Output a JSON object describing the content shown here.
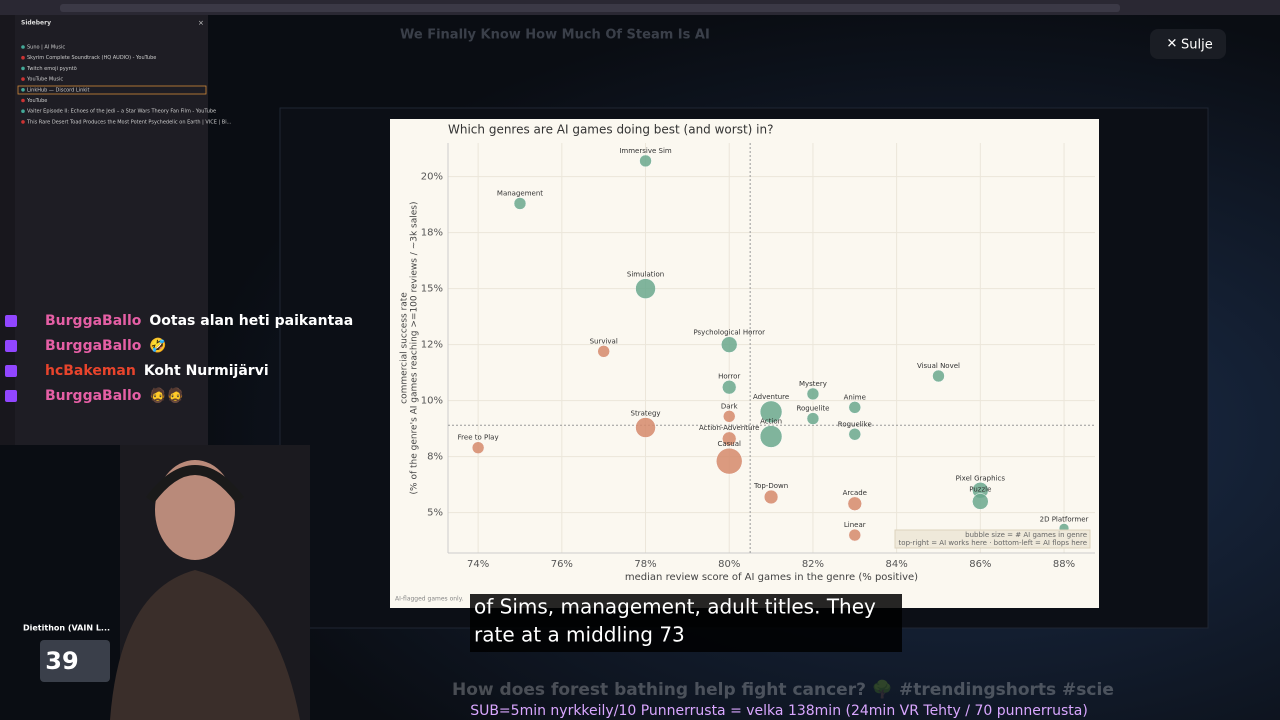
{
  "browser": {
    "sidebar_title": "Sidebery",
    "tabs": [
      "Suno | AI Music",
      "Skyrim Complete Soundtrack (HQ AUDIO) - YouTube",
      "Twitch emoji pyyntö",
      "YouTube Music",
      "LinkHub — Discord Linkit",
      "YouTube",
      "Vaiter Episode II: Echoes of the Jedi – a Star Wars Theory Fan Film - YouTube",
      "This Rare Desert Toad Produces the Most Potent Psychedelic on Earth | VICE | Bi..."
    ]
  },
  "chat": [
    {
      "user": "BurggaBallo",
      "message": "Ootas alan heti paikantaa"
    },
    {
      "user": "BurggaBallo",
      "message": "🤣"
    },
    {
      "user": "hcBakeman",
      "message": "Koht Nurmijärvi"
    },
    {
      "user": "BurggaBallo",
      "message": "🧔🧔"
    }
  ],
  "video": {
    "title": "We Finally Know How Much Of Steam Is AI",
    "close": "Sulje",
    "caption": [
      "of Sims, management, adult titles. They",
      "rate at a middling 73"
    ],
    "next_title": "How does forest bathing help fight cancer? 🌳 #trendingshorts #scie"
  },
  "stream": {
    "goal_label": "Dietithon (VAIN L...",
    "counter": "39",
    "ticker": "SUB=5min nyrkkeily/10 Punnerrusta = velka 138min (24min VR Tehty / 70 punnerrusta)"
  },
  "chart_data": {
    "type": "scatter",
    "title": "Which genres are AI games doing best (and worst) in?",
    "xlabel": "median review score of AI games in the genre (% positive)",
    "ylabel": [
      "commercial success rate",
      "(% of the genre's AI games reaching >=100 reviews / ~3k sales)"
    ],
    "xlim": [
      73.28,
      88.74
    ],
    "ylim": [
      3.2,
      21.5
    ],
    "xticks": [
      {
        "value": 74,
        "label": "74%"
      },
      {
        "value": 76,
        "label": "76%"
      },
      {
        "value": 78,
        "label": "78%"
      },
      {
        "value": 80,
        "label": "80%"
      },
      {
        "value": 82,
        "label": "82%"
      },
      {
        "value": 84,
        "label": "84%"
      },
      {
        "value": 86,
        "label": "86%"
      },
      {
        "value": 88,
        "label": "88%"
      }
    ],
    "yticks": [
      {
        "value": 5,
        "label": "5%"
      },
      {
        "value": 7.5,
        "label": "8%"
      },
      {
        "value": 10,
        "label": "10%"
      },
      {
        "value": 12.5,
        "label": "12%"
      },
      {
        "value": 15,
        "label": "15%"
      },
      {
        "value": 17.5,
        "label": "18%"
      },
      {
        "value": 20,
        "label": "20%"
      }
    ],
    "grid": true,
    "median_x": 80.5,
    "median_y": 8.9,
    "points": [
      {
        "name": "Immersive Sim",
        "x": 78.0,
        "y": 20.7,
        "size": 9,
        "color": "#6aa88d"
      },
      {
        "name": "Management",
        "x": 75.0,
        "y": 18.8,
        "size": 9,
        "color": "#6aa88d"
      },
      {
        "name": "Simulation",
        "x": 78.0,
        "y": 15.0,
        "size": 25,
        "color": "#6aa88d"
      },
      {
        "name": "Survival",
        "x": 77.0,
        "y": 12.2,
        "size": 9,
        "color": "#d58a6b"
      },
      {
        "name": "Psychological Horror",
        "x": 80.0,
        "y": 12.5,
        "size": 16,
        "color": "#6aa88d"
      },
      {
        "name": "Horror",
        "x": 80.0,
        "y": 10.6,
        "size": 12,
        "color": "#6aa88d"
      },
      {
        "name": "Visual Novel",
        "x": 85.0,
        "y": 11.1,
        "size": 9,
        "color": "#6aa88d"
      },
      {
        "name": "Mystery",
        "x": 82.0,
        "y": 10.3,
        "size": 9,
        "color": "#6aa88d"
      },
      {
        "name": "Anime",
        "x": 83.0,
        "y": 9.7,
        "size": 9,
        "color": "#6aa88d"
      },
      {
        "name": "Adventure",
        "x": 81.0,
        "y": 9.5,
        "size": 30,
        "color": "#6aa88d"
      },
      {
        "name": "Roguelite",
        "x": 82.0,
        "y": 9.2,
        "size": 9,
        "color": "#6aa88d"
      },
      {
        "name": "Dark",
        "x": 80.0,
        "y": 9.3,
        "size": 9,
        "color": "#d58a6b"
      },
      {
        "name": "Strategy",
        "x": 78.0,
        "y": 8.8,
        "size": 25,
        "color": "#d58a6b"
      },
      {
        "name": "Roguelike",
        "x": 83.0,
        "y": 8.5,
        "size": 9,
        "color": "#6aa88d"
      },
      {
        "name": "Action",
        "x": 81.0,
        "y": 8.4,
        "size": 30,
        "color": "#6aa88d"
      },
      {
        "name": "Action-Adventure",
        "x": 80.0,
        "y": 8.3,
        "size": 12,
        "color": "#d58a6b"
      },
      {
        "name": "Casual",
        "x": 80.0,
        "y": 7.3,
        "size": 42,
        "color": "#d58a6b"
      },
      {
        "name": "Free to Play",
        "x": 74.0,
        "y": 7.9,
        "size": 9,
        "color": "#d58a6b"
      },
      {
        "name": "Top-Down",
        "x": 81.0,
        "y": 5.7,
        "size": 12,
        "color": "#d58a6b"
      },
      {
        "name": "Pixel Graphics",
        "x": 86.0,
        "y": 6.0,
        "size": 16,
        "color": "#6aa88d"
      },
      {
        "name": "Puzzle",
        "x": 86.0,
        "y": 5.5,
        "size": 16,
        "color": "#6aa88d"
      },
      {
        "name": "Arcade",
        "x": 83.0,
        "y": 5.4,
        "size": 12,
        "color": "#d58a6b"
      },
      {
        "name": "Linear",
        "x": 83.0,
        "y": 4.0,
        "size": 9,
        "color": "#d58a6b"
      },
      {
        "name": "2D Platformer",
        "x": 88.0,
        "y": 4.3,
        "size": 6,
        "color": "#6aa88d"
      }
    ],
    "note": [
      "bubble size = # AI games in genre",
      "top-right = AI works here · bottom-left = AI flops here"
    ],
    "footnote": "AI-flagged games only."
  }
}
